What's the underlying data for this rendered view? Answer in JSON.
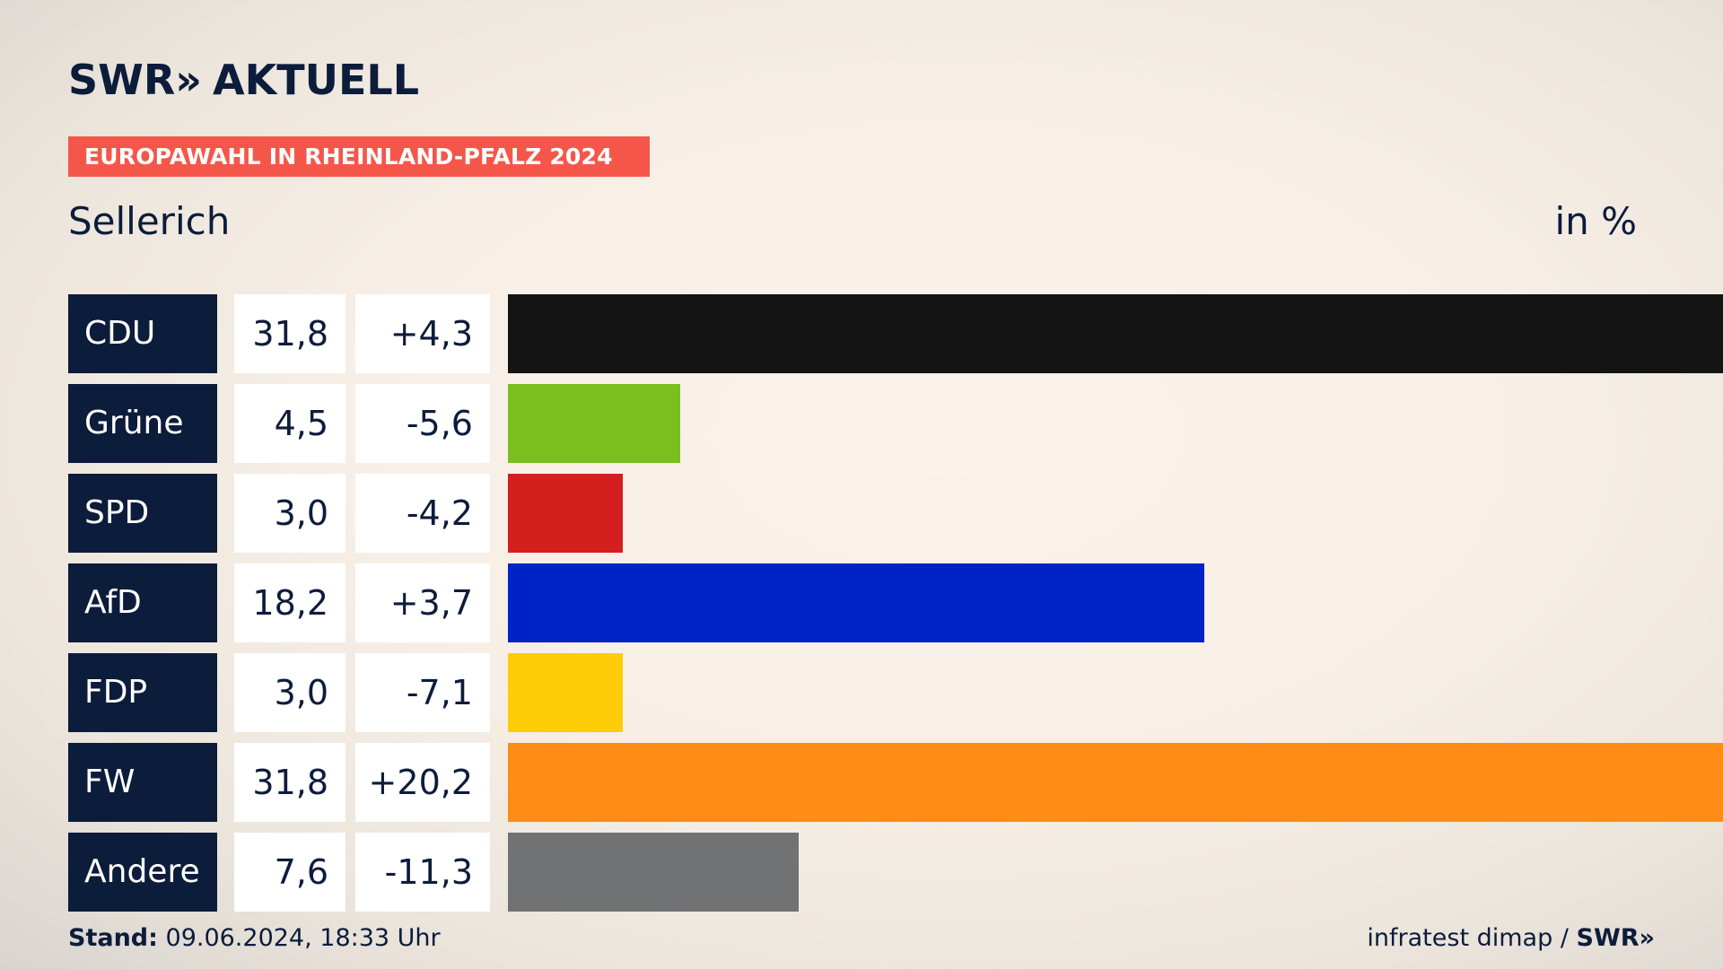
{
  "header": {
    "logo_text": "SWR",
    "logo_chevrons": "»",
    "logo_suffix": "AKTUELL",
    "banner": "EUROPAWAHL IN RHEINLAND-PFALZ 2024",
    "region": "Sellerich",
    "unit": "in %"
  },
  "footer": {
    "stand_label": "Stand:",
    "stand_value": "09.06.2024, 18:33 Uhr",
    "source": "infratest dimap /",
    "source_logo": "SWR»"
  },
  "chart_data": {
    "type": "bar",
    "orientation": "horizontal",
    "categories": [
      "CDU",
      "Grüne",
      "SPD",
      "AfD",
      "FDP",
      "FW",
      "Andere"
    ],
    "values": [
      31.8,
      4.5,
      3.0,
      18.2,
      3.0,
      31.8,
      7.6
    ],
    "value_labels": [
      "31,8",
      "4,5",
      "3,0",
      "18,2",
      "3,0",
      "31,8",
      "7,6"
    ],
    "change_labels": [
      "+4,3",
      "-5,6",
      "-4,2",
      "+3,7",
      "-7,1",
      "+20,2",
      "-11,3"
    ],
    "colors": [
      "#141414",
      "#7bbf1e",
      "#d41f1f",
      "#0023c8",
      "#ffcc07",
      "#ff8c17",
      "#717274"
    ],
    "xlim": [
      0,
      31.8
    ]
  }
}
